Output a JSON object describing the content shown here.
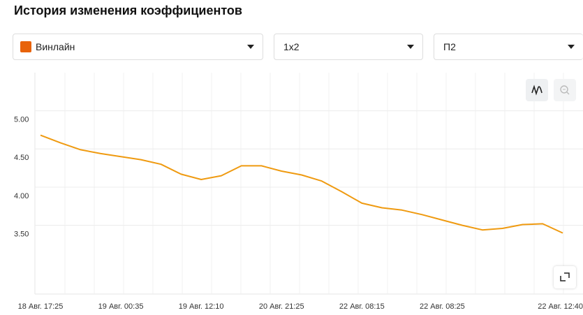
{
  "header": {
    "title": "История изменения коэффициентов"
  },
  "filters": [
    {
      "label": "Винлайн"
    },
    {
      "label": "1x2"
    },
    {
      "label": "П2"
    }
  ],
  "chart_data": {
    "type": "line",
    "categories": [
      "18 Авг. 17:25",
      null,
      null,
      null,
      "19 Авг. 00:35",
      null,
      null,
      null,
      "19 Авг. 12:10",
      null,
      null,
      null,
      "20 Авг. 21:25",
      null,
      null,
      null,
      "22 Авг. 08:15",
      null,
      null,
      null,
      "22 Авг. 08:25",
      null,
      null,
      null,
      null,
      null,
      "22 Авг. 12:40"
    ],
    "values": [
      4.68,
      4.58,
      4.49,
      4.44,
      4.4,
      4.36,
      4.3,
      4.17,
      4.1,
      4.15,
      4.28,
      4.28,
      4.21,
      4.16,
      4.08,
      3.94,
      3.79,
      3.73,
      3.7,
      3.64,
      3.57,
      3.5,
      3.44,
      3.46,
      3.51,
      3.52,
      3.4
    ],
    "color": "#ef9a10",
    "ylim": [
      2.6,
      5.5
    ],
    "yticks": [
      {
        "value": 5,
        "label": "5.00"
      },
      {
        "value": 4.5,
        "label": "4.50"
      },
      {
        "value": 4,
        "label": "4.00"
      },
      {
        "value": 3.5,
        "label": "3.50"
      }
    ],
    "grid": true
  }
}
